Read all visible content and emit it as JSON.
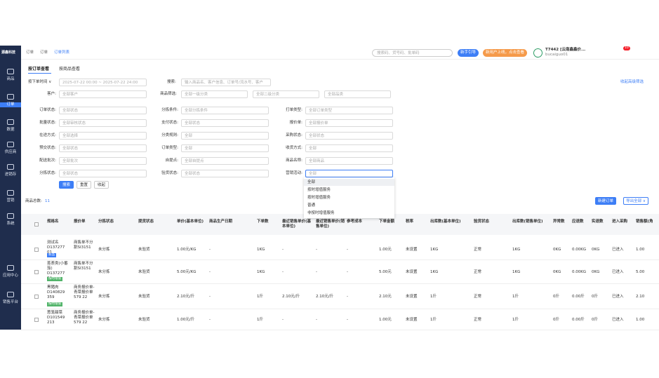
{
  "header": {
    "logo": "源鑫科技",
    "breadcrumb": [
      "订单",
      "订单",
      "订单列表"
    ],
    "search_placeholder": "搜索码、货号码、批单码",
    "guide_button": "新手引导",
    "promo_button": "新用户上线，点击查看",
    "user_name": "T7442 [云南鑫鑫价...",
    "user_account": "bucaiguo01",
    "badge": "10"
  },
  "sidebar": [
    "商品",
    "订单",
    "数据",
    "供应商",
    "进销存",
    "营销",
    "系统",
    "应用中心",
    "销售平台"
  ],
  "tabs": [
    "按订单查看",
    "按商品查看"
  ],
  "filters": {
    "date_type": "按下单时间 ∨",
    "date_range": "2025-07-22 00:00 ~ 2025-07-22 24:00",
    "search_label": "搜索:",
    "search_placeholder": "输入商品名、客户信息、订单号/流水号、客户",
    "collapse_link": "收起高级筛选",
    "customer_label": "客户:",
    "customer_value": "全部客户",
    "category_label": "商品筛选:",
    "category_values": [
      "全部一级分类",
      "全部二级分类",
      "全部品类"
    ],
    "columns": [
      [
        [
          "订单状态:",
          "全部状态"
        ],
        [
          "批量状态:",
          "全部审核状态"
        ],
        [
          "在途方式:",
          "全部选择"
        ],
        [
          "预交状态:",
          "全部状态"
        ],
        [
          "配送批次:",
          "全部批次"
        ],
        [
          "分拣状态:",
          "全部状态"
        ]
      ],
      [
        [
          "分拣条件:",
          "全部分拣条件"
        ],
        [
          "支付状态:",
          "全部状态"
        ],
        [
          "分类规则:",
          "全部"
        ],
        [
          "订单类型:",
          "全部"
        ],
        [
          "自提点:",
          "全部自提点"
        ],
        [
          "验货状态:",
          "全部状态"
        ]
      ],
      [
        [
          "打单类型:",
          "全部订单类型"
        ],
        [
          "报价单:",
          "全部报价单"
        ],
        [
          "采购状态:",
          "全部状态"
        ],
        [
          "收货方式:",
          "全部"
        ],
        [
          "商品名称:",
          "全部商品"
        ],
        [
          "营销活动:",
          "全部"
        ]
      ]
    ],
    "buttons": [
      "搜索",
      "重置",
      "收起"
    ],
    "dropdown": [
      "全部",
      "按时增值服务",
      "按时增值服务",
      "普通",
      "非按时增值服务"
    ]
  },
  "table": {
    "summary_label": "商品总数:",
    "summary_count": "11",
    "actions": [
      "新建订单",
      "导出全部 ∨"
    ],
    "columns": [
      "规格名",
      "报价单",
      "分拣状态",
      "提货状态",
      "单价(基本单位)",
      "商品生产日期",
      "下单数",
      "最近销售单价(基本单位)",
      "最近销售单价(销售单位)",
      "参考成本",
      "下单金额",
      "税率",
      "出库数(基本单位)",
      "验货状态",
      "出库数(销售单位)",
      "异常数",
      "应退数",
      "实退数",
      "进入采购",
      "销售额(角"
    ],
    "rows": [
      {
        "cells": [
          "测试名 D137277 01",
          "商售单不分割SI3151",
          "未分拣",
          "未验货",
          "1.00元/KG",
          "-",
          "1KG",
          "-",
          "-",
          "-",
          "1.00元",
          "未设置",
          "1KG",
          "正常",
          "1KG",
          "0KG",
          "0.00KG",
          "0KG",
          "已进入",
          "1.00"
        ],
        "tag": "新品"
      },
      {
        "cells": [
          "蒸荟类(小番茄) D137277 29",
          "商售单不分割SI3151",
          "未分拣",
          "未验货",
          "5.00元/KG",
          "-",
          "1KG",
          "-",
          "-",
          "-",
          "5.00元",
          "未设置",
          "1KG",
          "正常",
          "1KG",
          "0KG",
          "0.00KG",
          "0KG",
          "已进入",
          "5.00"
        ],
        "tag": "按时增值"
      },
      {
        "cells": [
          "黑猪肉 D140829 359",
          "商务报价单-青菜报价单579 22",
          "未分拣",
          "未验货",
          "2.10元/斤",
          "-",
          "1斤",
          "2.10元/斤",
          "2.10元/斤",
          "-",
          "2.10元",
          "未设置",
          "1斤",
          "正常",
          "1斤",
          "0斤",
          "0.00斤",
          "0斤",
          "已进入",
          "2.10"
        ],
        "tag": "按时增值"
      },
      {
        "cells": [
          "葱笼甜菜 D101549 213",
          "商务报价单-青菜报价单579 22",
          "未分拣",
          "未验货",
          "1.00元/斤",
          "-",
          "1斤",
          "-",
          "-",
          "-",
          "1.00元",
          "未设置",
          "1斤",
          "正常",
          "1斤",
          "0斤",
          "0.00斤",
          "0斤",
          "已进入",
          "1.00"
        ]
      }
    ]
  }
}
